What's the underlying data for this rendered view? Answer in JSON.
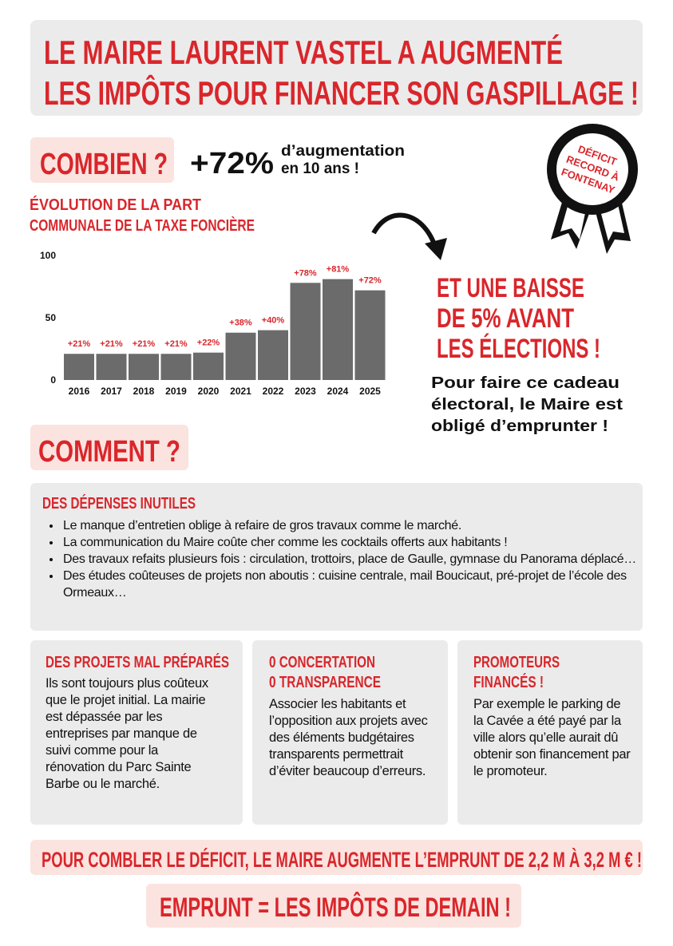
{
  "header": {
    "title_lines": [
      "LE MAIRE LAURENT VASTEL A AUGMENTÉ",
      "LES IMPÔTS POUR FINANCER SON GASPILLAGE !"
    ]
  },
  "combien": {
    "label": "COMBIEN ?",
    "figure": "+72%",
    "figure_text_lines": [
      "d’augmentation",
      "en 10 ans !"
    ]
  },
  "badge": {
    "lines": [
      "DÉFICIT",
      "RECORD À",
      "FONTENAY"
    ]
  },
  "chart_data": {
    "type": "bar",
    "title_lines": [
      "ÉVOLUTION DE LA PART",
      "COMMUNALE DE LA TAXE FONCIÈRE"
    ],
    "categories": [
      "2016",
      "2017",
      "2018",
      "2019",
      "2020",
      "2021",
      "2022",
      "2023",
      "2024",
      "2025"
    ],
    "values": [
      21,
      21,
      21,
      21,
      22,
      38,
      40,
      78,
      81,
      72
    ],
    "value_labels": [
      "+21%",
      "+21%",
      "+21%",
      "+21%",
      "+22%",
      "+38%",
      "+40%",
      "+78%",
      "+81%",
      "+72%"
    ],
    "color": "#6b6b6b",
    "label_color": "#d9262b",
    "ylim": [
      0,
      100
    ],
    "yticks": [
      0,
      50,
      100
    ]
  },
  "baisse": {
    "title_lines": [
      "ET UNE BAISSE",
      "DE 5% AVANT",
      "LES ÉLECTIONS !"
    ],
    "text_lines": [
      "Pour faire ce cadeau",
      "électoral, le Maire est",
      "obligé d’emprunter !"
    ]
  },
  "comment": {
    "label": "COMMENT ?"
  },
  "depenses": {
    "title": "DES DÉPENSES INUTILES",
    "items": [
      "Le manque d’entretien oblige à refaire de gros travaux comme le marché.",
      "La communication du Maire coûte cher comme les cocktails offerts aux habitants !",
      "Des travaux refaits plusieurs fois : circulation, trottoirs, place de Gaulle, gymnase du Panorama déplacé…",
      "Des études coûteuses de projets non aboutis : cuisine centrale, mail Boucicaut, pré-projet de l’école des Ormeaux…"
    ]
  },
  "columns": [
    {
      "title_lines": [
        "DES PROJETS MAL PRÉPARÉS"
      ],
      "text": "Ils sont toujours plus coûteux que le projet initial. La mairie est dépassée par les entreprises par manque de suivi comme pour la rénovation du Parc Sainte Barbe ou le marché."
    },
    {
      "title_lines": [
        "0 CONCERTATION",
        "0 TRANSPARENCE"
      ],
      "text": "Associer les habitants et l’opposition aux projets avec des éléments budgétaires transparents permettrait d’éviter beaucoup d’erreurs."
    },
    {
      "title_lines": [
        "PROMOTEURS",
        "FINANCÉS !"
      ],
      "text": "Par exemple le parking de la Cavée a été payé par la ville alors qu’elle aurait dû obtenir son financement par le promoteur."
    }
  ],
  "conclusion": "POUR COMBLER LE DÉFICIT, LE MAIRE AUGMENTE L’EMPRUNT DE 2,2 M À 3,2 M € !",
  "footer": "EMPRUNT = LES IMPÔTS DE DEMAIN !"
}
